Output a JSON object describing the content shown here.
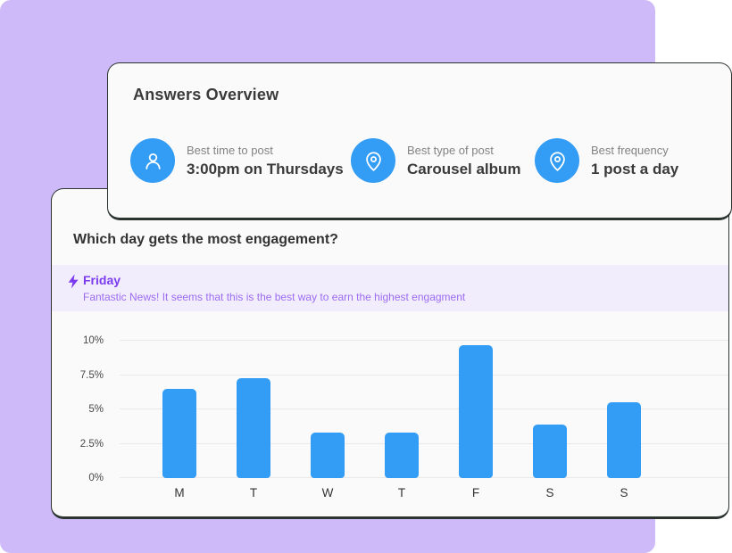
{
  "colors": {
    "background": "#CEBAF8",
    "card_background": "#FAFAFB",
    "card_border": "#2B342F",
    "accent_blue": "#339CF4",
    "accent_purple": "#7B3CEF",
    "highlight_message_purple": "#9B6CF1",
    "highlight_banner_bg": "#F2EDFC"
  },
  "answers_card": {
    "title": "Answers Overview",
    "items": [
      {
        "icon": "user-icon",
        "label": "Best time to post",
        "value": "3:00pm on Thursdays"
      },
      {
        "icon": "location-pin-icon",
        "label": "Best type of post",
        "value": "Carousel album"
      },
      {
        "icon": "location-pin-icon",
        "label": "Best frequency",
        "value": "1 post a day"
      }
    ]
  },
  "engagement_card": {
    "heading": "Which day gets the most engagement?",
    "highlight": {
      "icon": "lightning-icon",
      "title": "Friday",
      "message": "Fantastic News! It seems that this is the best way to earn the highest engagment"
    }
  },
  "chart_data": {
    "type": "bar",
    "categories": [
      "M",
      "T",
      "W",
      "T",
      "F",
      "S",
      "S"
    ],
    "values": [
      6.5,
      7.3,
      3.3,
      3.3,
      9.7,
      3.9,
      5.5
    ],
    "title": "",
    "xlabel": "",
    "ylabel": "",
    "ylim": [
      0,
      10
    ],
    "ytick_values": [
      0,
      2.5,
      5,
      7.5,
      10
    ],
    "ytick_labels": [
      "0%",
      "2.5%",
      "5%",
      "7.5%",
      "10%"
    ],
    "unit": "%",
    "bar_color": "#339CF4",
    "grid": true,
    "legend": false
  }
}
